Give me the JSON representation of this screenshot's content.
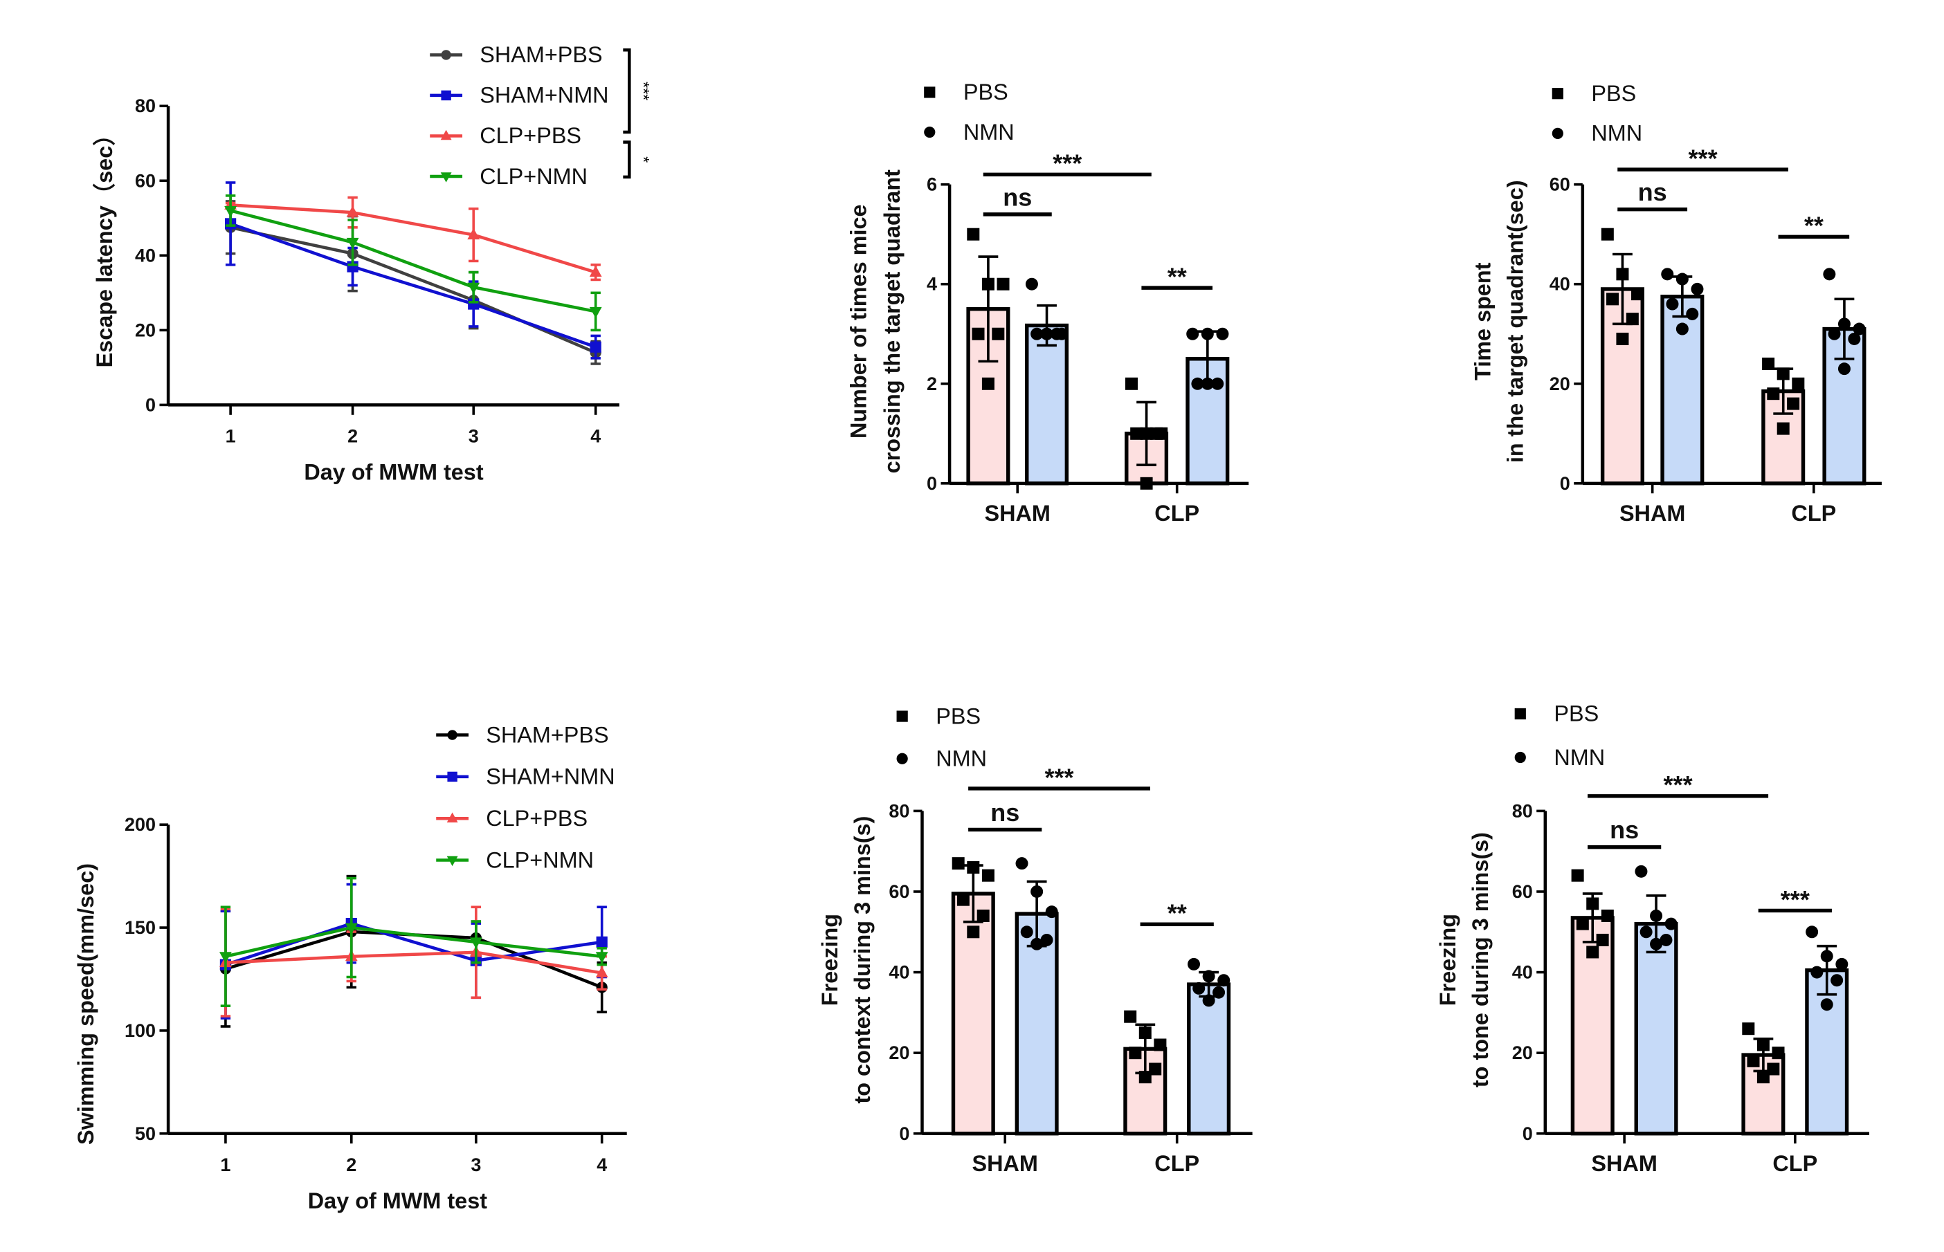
{
  "chart_data": [
    {
      "type": "line",
      "xlabel": "Day of MWM test",
      "ylabel": "Escape latency（sec）",
      "x": [
        1,
        2,
        3,
        4
      ],
      "xticks": [
        "1",
        "2",
        "3",
        "4"
      ],
      "ylim": [
        0,
        80
      ],
      "yticks": [
        "0",
        "20",
        "40",
        "60",
        "80"
      ],
      "legend_placement": "top-right",
      "series": [
        {
          "name": "SHAM+PBS",
          "color": "#404040",
          "marker": "circle",
          "values": [
            47.5,
            40.5,
            28,
            14
          ],
          "error": [
            7,
            10,
            7.5,
            3
          ]
        },
        {
          "name": "SHAM+NMN",
          "color": "#1010d0",
          "marker": "square",
          "values": [
            48.5,
            37,
            27,
            15.5
          ],
          "error": [
            11,
            5,
            6,
            3
          ]
        },
        {
          "name": "CLP+PBS",
          "color": "#f04848",
          "marker": "triangle-up",
          "values": [
            53.5,
            51.5,
            45.5,
            35.5
          ],
          "error": [
            0.5,
            4,
            7,
            2
          ]
        },
        {
          "name": "CLP+NMN",
          "color": "#10a010",
          "marker": "triangle-down",
          "values": [
            52,
            43.5,
            31.5,
            25
          ],
          "error": [
            4,
            6,
            4,
            5
          ]
        }
      ],
      "significance": [
        {
          "from": "SHAM+PBS",
          "to": "CLP+PBS",
          "label": "***"
        },
        {
          "from": "CLP+PBS",
          "to": "CLP+NMN",
          "label": "*"
        }
      ]
    },
    {
      "type": "bar",
      "ylabel": [
        "Number of times mice",
        "crossing the target quadrant"
      ],
      "categories": [
        "SHAM",
        "CLP"
      ],
      "ylim": [
        0,
        6
      ],
      "yticks": [
        "0",
        "2",
        "4",
        "6"
      ],
      "legend_placement": "top-left",
      "series": [
        {
          "name": "PBS",
          "color": "#fde0e0",
          "marker": "square",
          "values": [
            3.5,
            1.0
          ],
          "error": [
            1.05,
            0.63
          ],
          "points": [
            [
              5,
              4,
              4,
              3,
              3,
              2
            ],
            [
              2,
              1,
              1,
              1,
              1,
              0
            ]
          ]
        },
        {
          "name": "NMN",
          "color": "#c6daf8",
          "marker": "circle",
          "values": [
            3.17,
            2.5
          ],
          "error": [
            0.4,
            0.55
          ],
          "points": [
            [
              4,
              3,
              3,
              3,
              3,
              3
            ],
            [
              3,
              3,
              3,
              2,
              2,
              2
            ]
          ]
        }
      ],
      "significance": [
        {
          "groups": [
            "SHAM PBS",
            "CLP PBS"
          ],
          "label": "***"
        },
        {
          "groups": [
            "SHAM PBS",
            "SHAM NMN"
          ],
          "label": "ns"
        },
        {
          "groups": [
            "CLP PBS",
            "CLP NMN"
          ],
          "label": "**"
        }
      ]
    },
    {
      "type": "bar",
      "ylabel": [
        "Time spent",
        "in the target quadrant(sec)"
      ],
      "categories": [
        "SHAM",
        "CLP"
      ],
      "ylim": [
        0,
        60
      ],
      "yticks": [
        "0",
        "20",
        "40",
        "60"
      ],
      "legend_placement": "top-left",
      "series": [
        {
          "name": "PBS",
          "color": "#fde0e0",
          "marker": "square",
          "values": [
            39,
            18.5
          ],
          "error": [
            7,
            4.5
          ],
          "points": [
            [
              50,
              42,
              38,
              37,
              33,
              29
            ],
            [
              24,
              22,
              20,
              18,
              16,
              11
            ]
          ]
        },
        {
          "name": "NMN",
          "color": "#c6daf8",
          "marker": "circle",
          "values": [
            37.5,
            31
          ],
          "error": [
            4,
            6
          ],
          "points": [
            [
              42,
              41,
              39,
              36,
              34,
              31
            ],
            [
              42,
              32,
              31,
              30,
              29,
              23
            ]
          ]
        }
      ],
      "significance": [
        {
          "groups": [
            "SHAM PBS",
            "CLP PBS"
          ],
          "label": "***"
        },
        {
          "groups": [
            "SHAM PBS",
            "SHAM NMN"
          ],
          "label": "ns"
        },
        {
          "groups": [
            "CLP PBS",
            "CLP NMN"
          ],
          "label": "**"
        }
      ]
    },
    {
      "type": "line",
      "xlabel": "Day of MWM test",
      "ylabel": "Swimming speed(mm/sec)",
      "x": [
        1,
        2,
        3,
        4
      ],
      "xticks": [
        "1",
        "2",
        "3",
        "4"
      ],
      "ylim": [
        50,
        200
      ],
      "yticks": [
        "50",
        "100",
        "150",
        "200"
      ],
      "legend_placement": "top-right",
      "series": [
        {
          "name": "SHAM+PBS",
          "color": "#000000",
          "marker": "circle",
          "values": [
            130,
            148,
            145,
            121
          ],
          "error": [
            28,
            27,
            8,
            12
          ]
        },
        {
          "name": "SHAM+NMN",
          "color": "#1010d0",
          "marker": "square",
          "values": [
            132,
            152,
            134,
            143
          ],
          "error": [
            26,
            19,
            18,
            17
          ]
        },
        {
          "name": "CLP+PBS",
          "color": "#f04848",
          "marker": "triangle-up",
          "values": [
            133,
            136,
            138,
            128
          ],
          "error": [
            26,
            12,
            22,
            8
          ]
        },
        {
          "name": "CLP+NMN",
          "color": "#10a010",
          "marker": "triangle-down",
          "values": [
            136,
            150,
            143,
            136
          ],
          "error": [
            24,
            24,
            10,
            4
          ]
        }
      ],
      "significance": []
    },
    {
      "type": "bar",
      "ylabel": [
        "Freezing",
        "to context during 3 mins(s)"
      ],
      "categories": [
        "SHAM",
        "CLP"
      ],
      "ylim": [
        0,
        80
      ],
      "yticks": [
        "0",
        "20",
        "40",
        "60",
        "80"
      ],
      "legend_placement": "top-left",
      "series": [
        {
          "name": "PBS",
          "color": "#fde0e0",
          "marker": "square",
          "values": [
            59.5,
            21
          ],
          "error": [
            7,
            6
          ],
          "points": [
            [
              67,
              66,
              64,
              58,
              54,
              50
            ],
            [
              29,
              25,
              22,
              20,
              16,
              14
            ]
          ]
        },
        {
          "name": "NMN",
          "color": "#c6daf8",
          "marker": "circle",
          "values": [
            54.5,
            37
          ],
          "error": [
            8,
            3
          ],
          "points": [
            [
              67,
              60,
              55,
              50,
              48,
              47
            ],
            [
              42,
              39,
              38,
              36,
              35,
              33
            ]
          ]
        }
      ],
      "significance": [
        {
          "groups": [
            "SHAM PBS",
            "CLP PBS"
          ],
          "label": "***"
        },
        {
          "groups": [
            "SHAM PBS",
            "SHAM NMN"
          ],
          "label": "ns"
        },
        {
          "groups": [
            "CLP PBS",
            "CLP NMN"
          ],
          "label": "**"
        }
      ]
    },
    {
      "type": "bar",
      "ylabel": [
        "Freezing",
        "to tone during 3 mins(s)"
      ],
      "categories": [
        "SHAM",
        "CLP"
      ],
      "ylim": [
        0,
        80
      ],
      "yticks": [
        "0",
        "20",
        "40",
        "60",
        "80"
      ],
      "legend_placement": "top-left",
      "series": [
        {
          "name": "PBS",
          "color": "#fde0e0",
          "marker": "square",
          "values": [
            53.5,
            19.5
          ],
          "error": [
            6,
            4
          ],
          "points": [
            [
              64,
              57,
              54,
              52,
              48,
              45
            ],
            [
              26,
              22,
              20,
              18,
              16,
              14
            ]
          ]
        },
        {
          "name": "NMN",
          "color": "#c6daf8",
          "marker": "circle",
          "values": [
            52,
            40.5
          ],
          "error": [
            7,
            6
          ],
          "points": [
            [
              65,
              54,
              52,
              50,
              48,
              47
            ],
            [
              50,
              44,
              42,
              40,
              38,
              32
            ]
          ]
        }
      ],
      "significance": [
        {
          "groups": [
            "SHAM PBS",
            "CLP PBS"
          ],
          "label": "***"
        },
        {
          "groups": [
            "SHAM PBS",
            "SHAM NMN"
          ],
          "label": "ns"
        },
        {
          "groups": [
            "CLP PBS",
            "CLP NMN"
          ],
          "label": "***"
        }
      ]
    }
  ]
}
